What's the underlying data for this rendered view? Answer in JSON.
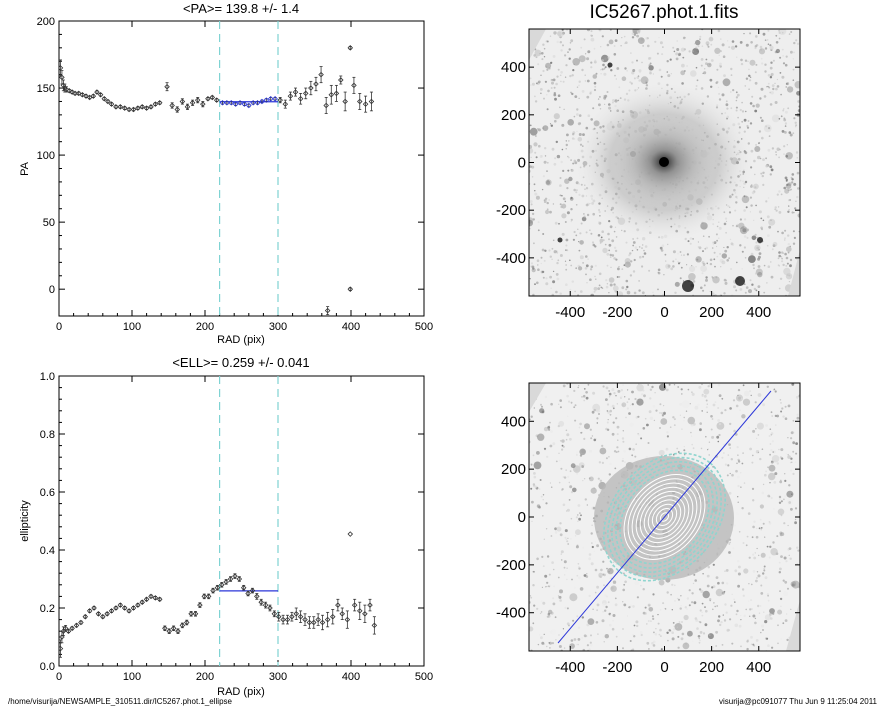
{
  "chart_data": [
    {
      "type": "scatter",
      "title": "<PA>= 139.8 +/-   1.4",
      "xlabel": "RAD (pix)",
      "ylabel": "PA",
      "xlim": [
        0,
        500
      ],
      "ylim": [
        -20,
        200
      ],
      "xticks": [
        "0",
        "100",
        "200",
        "300",
        "400",
        "500"
      ],
      "yticks": [
        "0",
        "50",
        "100",
        "150",
        "200"
      ],
      "vlines": [
        220,
        300
      ],
      "mean_line": {
        "x": [
          220,
          300
        ],
        "y": 139.8
      },
      "series": [
        {
          "values": [
            {
              "x": 2,
              "y": 165,
              "err": 6
            },
            {
              "x": 4,
              "y": 158,
              "err": 5
            },
            {
              "x": 6,
              "y": 152,
              "err": 4
            },
            {
              "x": 8,
              "y": 150,
              "err": 3
            },
            {
              "x": 10,
              "y": 149,
              "err": 2
            },
            {
              "x": 14,
              "y": 148,
              "err": 1
            },
            {
              "x": 18,
              "y": 147,
              "err": 1
            },
            {
              "x": 22,
              "y": 146,
              "err": 1
            },
            {
              "x": 27,
              "y": 146,
              "err": 1
            },
            {
              "x": 32,
              "y": 145,
              "err": 1
            },
            {
              "x": 37,
              "y": 144,
              "err": 1
            },
            {
              "x": 42,
              "y": 143,
              "err": 1
            },
            {
              "x": 47,
              "y": 144,
              "err": 1
            },
            {
              "x": 52,
              "y": 147,
              "err": 1
            },
            {
              "x": 57,
              "y": 145,
              "err": 1
            },
            {
              "x": 62,
              "y": 142,
              "err": 1
            },
            {
              "x": 67,
              "y": 140,
              "err": 1
            },
            {
              "x": 72,
              "y": 138,
              "err": 1
            },
            {
              "x": 78,
              "y": 136,
              "err": 1
            },
            {
              "x": 84,
              "y": 136,
              "err": 1
            },
            {
              "x": 90,
              "y": 135,
              "err": 1
            },
            {
              "x": 96,
              "y": 134,
              "err": 1
            },
            {
              "x": 102,
              "y": 134,
              "err": 1
            },
            {
              "x": 108,
              "y": 135,
              "err": 1
            },
            {
              "x": 114,
              "y": 136,
              "err": 1
            },
            {
              "x": 120,
              "y": 135,
              "err": 1
            },
            {
              "x": 126,
              "y": 136,
              "err": 1
            },
            {
              "x": 132,
              "y": 138,
              "err": 1
            },
            {
              "x": 138,
              "y": 139,
              "err": 1
            },
            {
              "x": 148,
              "y": 151,
              "err": 3
            },
            {
              "x": 155,
              "y": 137,
              "err": 2
            },
            {
              "x": 162,
              "y": 134,
              "err": 2
            },
            {
              "x": 169,
              "y": 140,
              "err": 2
            },
            {
              "x": 176,
              "y": 136,
              "err": 2
            },
            {
              "x": 183,
              "y": 139,
              "err": 2
            },
            {
              "x": 190,
              "y": 141,
              "err": 2
            },
            {
              "x": 197,
              "y": 138,
              "err": 2
            },
            {
              "x": 204,
              "y": 142,
              "err": 1
            },
            {
              "x": 210,
              "y": 143,
              "err": 1
            },
            {
              "x": 216,
              "y": 141,
              "err": 1
            },
            {
              "x": 224,
              "y": 139,
              "err": 1
            },
            {
              "x": 230,
              "y": 139,
              "err": 1
            },
            {
              "x": 236,
              "y": 139,
              "err": 1
            },
            {
              "x": 242,
              "y": 138,
              "err": 1
            },
            {
              "x": 248,
              "y": 139,
              "err": 1
            },
            {
              "x": 254,
              "y": 138,
              "err": 1
            },
            {
              "x": 260,
              "y": 137,
              "err": 1
            },
            {
              "x": 266,
              "y": 139,
              "err": 1
            },
            {
              "x": 272,
              "y": 139,
              "err": 1
            },
            {
              "x": 278,
              "y": 140,
              "err": 1
            },
            {
              "x": 284,
              "y": 141,
              "err": 1
            },
            {
              "x": 290,
              "y": 142,
              "err": 1
            },
            {
              "x": 296,
              "y": 142,
              "err": 1
            },
            {
              "x": 303,
              "y": 141,
              "err": 2
            },
            {
              "x": 310,
              "y": 138,
              "err": 3
            },
            {
              "x": 317,
              "y": 144,
              "err": 3
            },
            {
              "x": 324,
              "y": 147,
              "err": 3
            },
            {
              "x": 331,
              "y": 142,
              "err": 4
            },
            {
              "x": 338,
              "y": 146,
              "err": 4
            },
            {
              "x": 345,
              "y": 150,
              "err": 5
            },
            {
              "x": 352,
              "y": 153,
              "err": 5
            },
            {
              "x": 359,
              "y": 160,
              "err": 6
            },
            {
              "x": 366,
              "y": 137,
              "err": 6
            },
            {
              "x": 373,
              "y": 145,
              "err": 7
            },
            {
              "x": 380,
              "y": 146,
              "err": 6
            },
            {
              "x": 386,
              "y": 156,
              "err": 3
            },
            {
              "x": 392,
              "y": 140,
              "err": 7
            },
            {
              "x": 399,
              "y": 180,
              "err": 1
            },
            {
              "x": 399,
              "y": 0,
              "err": 1
            },
            {
              "x": 404,
              "y": 152,
              "err": 6
            },
            {
              "x": 412,
              "y": 140,
              "err": 6
            },
            {
              "x": 420,
              "y": 138,
              "err": 6
            },
            {
              "x": 428,
              "y": 140,
              "err": 7
            },
            {
              "x": 368,
              "y": -16,
              "err": 3
            }
          ]
        }
      ]
    },
    {
      "type": "scatter",
      "title": "<ELL>= 0.259 +/-  0.041",
      "xlabel": "RAD (pix)",
      "ylabel": "ellipticity",
      "xlim": [
        0,
        500
      ],
      "ylim": [
        0,
        1
      ],
      "xticks": [
        "0",
        "100",
        "200",
        "300",
        "400",
        "500"
      ],
      "yticks": [
        "0.0",
        "0.2",
        "0.4",
        "0.6",
        "0.8",
        "1.0"
      ],
      "vlines": [
        220,
        300
      ],
      "mean_line": {
        "x": [
          220,
          300
        ],
        "y": 0.259
      },
      "series": [
        {
          "values": [
            {
              "x": 2,
              "y": 0.06,
              "err": 0.03
            },
            {
              "x": 4,
              "y": 0.1,
              "err": 0.02
            },
            {
              "x": 6,
              "y": 0.12,
              "err": 0.015
            },
            {
              "x": 9,
              "y": 0.13,
              "err": 0.01
            },
            {
              "x": 13,
              "y": 0.12,
              "err": 0.005
            },
            {
              "x": 18,
              "y": 0.13,
              "err": 0.005
            },
            {
              "x": 24,
              "y": 0.14,
              "err": 0.005
            },
            {
              "x": 30,
              "y": 0.15,
              "err": 0.005
            },
            {
              "x": 36,
              "y": 0.17,
              "err": 0.005
            },
            {
              "x": 42,
              "y": 0.19,
              "err": 0.005
            },
            {
              "x": 48,
              "y": 0.2,
              "err": 0.005
            },
            {
              "x": 54,
              "y": 0.18,
              "err": 0.005
            },
            {
              "x": 60,
              "y": 0.17,
              "err": 0.005
            },
            {
              "x": 66,
              "y": 0.18,
              "err": 0.005
            },
            {
              "x": 72,
              "y": 0.19,
              "err": 0.005
            },
            {
              "x": 78,
              "y": 0.2,
              "err": 0.005
            },
            {
              "x": 84,
              "y": 0.21,
              "err": 0.005
            },
            {
              "x": 90,
              "y": 0.2,
              "err": 0.005
            },
            {
              "x": 96,
              "y": 0.19,
              "err": 0.005
            },
            {
              "x": 102,
              "y": 0.2,
              "err": 0.005
            },
            {
              "x": 108,
              "y": 0.21,
              "err": 0.005
            },
            {
              "x": 114,
              "y": 0.22,
              "err": 0.005
            },
            {
              "x": 120,
              "y": 0.23,
              "err": 0.005
            },
            {
              "x": 126,
              "y": 0.24,
              "err": 0.005
            },
            {
              "x": 132,
              "y": 0.235,
              "err": 0.005
            },
            {
              "x": 138,
              "y": 0.23,
              "err": 0.005
            },
            {
              "x": 145,
              "y": 0.13,
              "err": 0.008
            },
            {
              "x": 151,
              "y": 0.12,
              "err": 0.008
            },
            {
              "x": 157,
              "y": 0.13,
              "err": 0.008
            },
            {
              "x": 163,
              "y": 0.12,
              "err": 0.008
            },
            {
              "x": 169,
              "y": 0.14,
              "err": 0.008
            },
            {
              "x": 175,
              "y": 0.15,
              "err": 0.008
            },
            {
              "x": 181,
              "y": 0.18,
              "err": 0.008
            },
            {
              "x": 187,
              "y": 0.18,
              "err": 0.008
            },
            {
              "x": 193,
              "y": 0.21,
              "err": 0.008
            },
            {
              "x": 199,
              "y": 0.24,
              "err": 0.008
            },
            {
              "x": 205,
              "y": 0.24,
              "err": 0.008
            },
            {
              "x": 211,
              "y": 0.26,
              "err": 0.008
            },
            {
              "x": 217,
              "y": 0.27,
              "err": 0.008
            },
            {
              "x": 223,
              "y": 0.28,
              "err": 0.008
            },
            {
              "x": 229,
              "y": 0.29,
              "err": 0.008
            },
            {
              "x": 235,
              "y": 0.3,
              "err": 0.008
            },
            {
              "x": 241,
              "y": 0.31,
              "err": 0.008
            },
            {
              "x": 247,
              "y": 0.3,
              "err": 0.008
            },
            {
              "x": 253,
              "y": 0.27,
              "err": 0.008
            },
            {
              "x": 259,
              "y": 0.25,
              "err": 0.008
            },
            {
              "x": 265,
              "y": 0.26,
              "err": 0.008
            },
            {
              "x": 271,
              "y": 0.24,
              "err": 0.01
            },
            {
              "x": 277,
              "y": 0.22,
              "err": 0.01
            },
            {
              "x": 283,
              "y": 0.21,
              "err": 0.01
            },
            {
              "x": 289,
              "y": 0.2,
              "err": 0.01
            },
            {
              "x": 295,
              "y": 0.18,
              "err": 0.01
            },
            {
              "x": 301,
              "y": 0.17,
              "err": 0.015
            },
            {
              "x": 307,
              "y": 0.16,
              "err": 0.015
            },
            {
              "x": 313,
              "y": 0.16,
              "err": 0.015
            },
            {
              "x": 319,
              "y": 0.17,
              "err": 0.015
            },
            {
              "x": 325,
              "y": 0.18,
              "err": 0.02
            },
            {
              "x": 331,
              "y": 0.17,
              "err": 0.02
            },
            {
              "x": 337,
              "y": 0.16,
              "err": 0.02
            },
            {
              "x": 343,
              "y": 0.15,
              "err": 0.02
            },
            {
              "x": 349,
              "y": 0.15,
              "err": 0.02
            },
            {
              "x": 355,
              "y": 0.16,
              "err": 0.02
            },
            {
              "x": 361,
              "y": 0.15,
              "err": 0.025
            },
            {
              "x": 368,
              "y": 0.16,
              "err": 0.025
            },
            {
              "x": 375,
              "y": 0.17,
              "err": 0.025
            },
            {
              "x": 382,
              "y": 0.21,
              "err": 0.02
            },
            {
              "x": 388,
              "y": 0.18,
              "err": 0.02
            },
            {
              "x": 395,
              "y": 0.16,
              "err": 0.03
            },
            {
              "x": 399,
              "y": 0.455,
              "err": 0.003
            },
            {
              "x": 405,
              "y": 0.21,
              "err": 0.02
            },
            {
              "x": 412,
              "y": 0.19,
              "err": 0.03
            },
            {
              "x": 419,
              "y": 0.18,
              "err": 0.03
            },
            {
              "x": 426,
              "y": 0.21,
              "err": 0.02
            },
            {
              "x": 432,
              "y": 0.14,
              "err": 0.03
            }
          ]
        }
      ]
    },
    {
      "type": "image",
      "title": "IC5267.phot.1.fits",
      "xlim": [
        -575,
        575
      ],
      "ylim": [
        -560,
        560
      ],
      "xticks": [
        "-400",
        "-200",
        "0",
        "200",
        "400"
      ],
      "yticks": [
        "-400",
        "-200",
        "0",
        "200",
        "400"
      ]
    },
    {
      "type": "image",
      "title": "",
      "xlim": [
        -575,
        575
      ],
      "ylim": [
        -560,
        560
      ],
      "xticks": [
        "-400",
        "-200",
        "0",
        "200",
        "400"
      ],
      "yticks": [
        "-400",
        "-200",
        "0",
        "200",
        "400"
      ],
      "pa_line_deg": 139.8,
      "ellipse_radii": [
        20,
        40,
        60,
        80,
        100,
        120,
        140,
        160,
        180,
        200,
        220,
        240,
        260,
        280,
        300
      ],
      "ellipticity": 0.259
    }
  ],
  "colors": {
    "mean_line": "#2b36d9",
    "vlines": "#7fd3d3",
    "contours_inner": "#ffffff",
    "contours_outer": "#8fd5cf",
    "points": "#333333"
  },
  "footer": {
    "path": "/home/visurija/NEWSAMPLE_310511.dir/IC5267.phot.1_ellipse",
    "user_time": "visurija@pc091077  Thu Jun  9 11:25:04 2011"
  }
}
